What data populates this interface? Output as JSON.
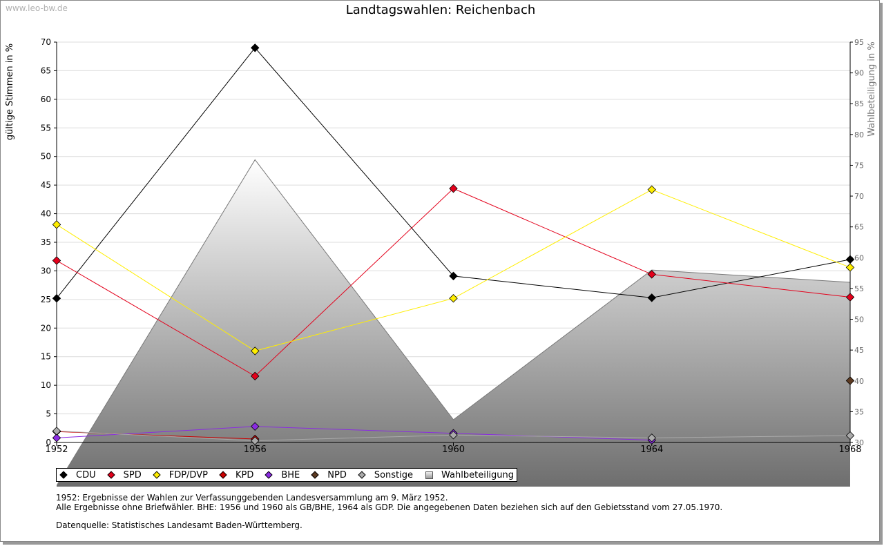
{
  "watermark": "www.leo-bw.de",
  "notes": {
    "line1": "1952: Ergebnisse der Wahlen zur Verfassunggebenden Landesversammlung am 9. März 1952.",
    "line2": "Alle Ergebnisse ohne Briefwähler. BHE: 1956 und 1960 als GB/BHE, 1964 als GDP. Die angegebenen Daten beziehen sich auf den Gebietsstand vom 27.05.1970.",
    "source": "Datenquelle: Statistisches Landesamt Baden-Württemberg."
  },
  "chart_data": {
    "type": "line",
    "title": "Landtagswahlen: Reichenbach",
    "xlabel": "",
    "ylabel": "gültige Stimmen in %",
    "y2label": "Wahlbeteiligung in %",
    "categories": [
      "1952",
      "1956",
      "1960",
      "1964",
      "1968"
    ],
    "ylim": [
      0,
      70
    ],
    "yticks": [
      0,
      5,
      10,
      15,
      20,
      25,
      30,
      35,
      40,
      45,
      50,
      55,
      60,
      65,
      70
    ],
    "y2lim": [
      30,
      95
    ],
    "y2ticks": [
      30,
      35,
      40,
      45,
      50,
      55,
      60,
      65,
      70,
      75,
      80,
      85,
      90,
      95
    ],
    "grid": true,
    "legend_position": "bottom-left",
    "series": [
      {
        "name": "CDU",
        "color": "#000000",
        "values": [
          25.2,
          69.0,
          29.1,
          25.3,
          32.0
        ]
      },
      {
        "name": "SPD",
        "color": "#e3001b",
        "values": [
          31.8,
          11.6,
          44.4,
          29.4,
          25.4
        ]
      },
      {
        "name": "FDP/DVP",
        "color": "#ffee00",
        "values": [
          38.1,
          16.0,
          25.2,
          44.2,
          30.6
        ]
      },
      {
        "name": "KPD",
        "color": "#cc0000",
        "values": [
          1.9,
          0.6,
          null,
          null,
          null
        ]
      },
      {
        "name": "BHE",
        "color": "#8a2be2",
        "values": [
          0.8,
          2.8,
          1.6,
          0.4,
          null
        ]
      },
      {
        "name": "NPD",
        "color": "#5c3a21",
        "values": [
          null,
          null,
          null,
          null,
          10.8
        ]
      },
      {
        "name": "Sonstige",
        "color": "#aaaaaa",
        "values": [
          2.0,
          0.3,
          1.3,
          0.8,
          1.2
        ]
      }
    ],
    "turnout": {
      "name": "Wahlbeteiligung",
      "axis": "right",
      "values": [
        23.0,
        75.9,
        33.7,
        58.0,
        56.0
      ]
    }
  }
}
